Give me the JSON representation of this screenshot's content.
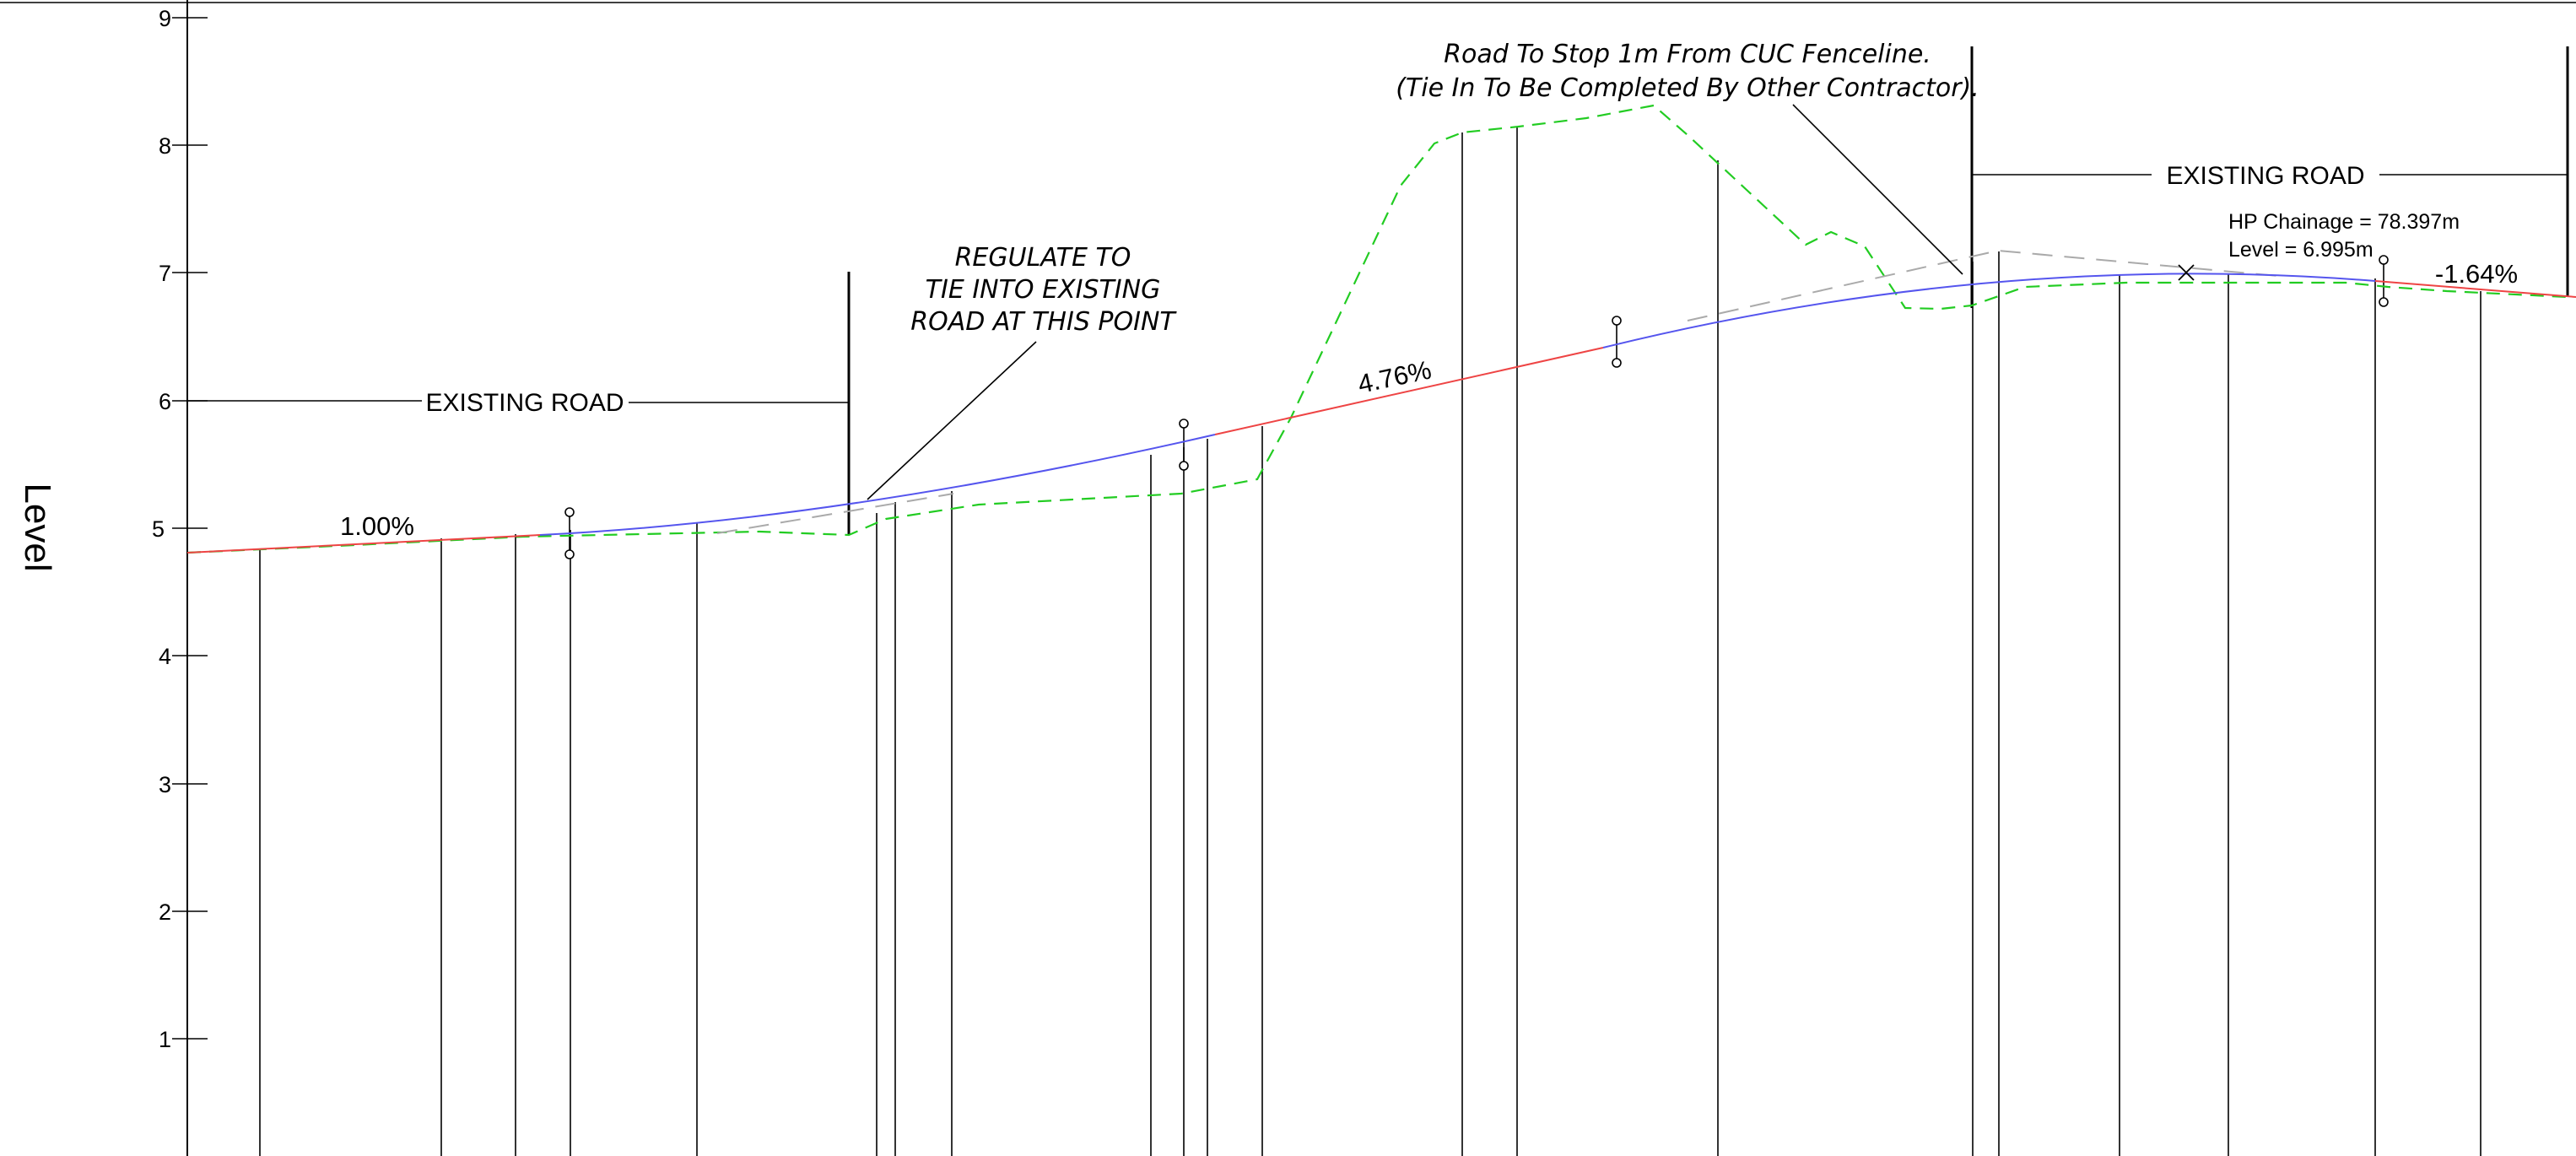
{
  "axis": {
    "label": "Level",
    "ticks": [
      "9",
      "8",
      "7",
      "6",
      "5",
      "4",
      "3",
      "2",
      "1"
    ]
  },
  "labels": {
    "existing_road_left": "EXISTING ROAD",
    "existing_road_right": "EXISTING ROAD",
    "grade_left": "1.00%",
    "grade_mid": "4.76%",
    "grade_right": "-1.64%",
    "regulate_note": [
      "REGULATE TO",
      "TIE INTO EXISTING",
      "ROAD AT THIS POINT"
    ],
    "stop_note": [
      "Road To Stop 1m From CUC Fenceline.",
      "(Tie In To Be Completed By Other Contractor)."
    ],
    "hp_chainage": "HP Chainage = 78.397m",
    "hp_level": "Level = 6.995m"
  },
  "colors": {
    "design_tangent": "#ee4444",
    "design_curve": "#5555ee",
    "existing_ground": "#22cc22",
    "tangent_extension": "#aaaaaa",
    "linework": "#000000"
  }
}
